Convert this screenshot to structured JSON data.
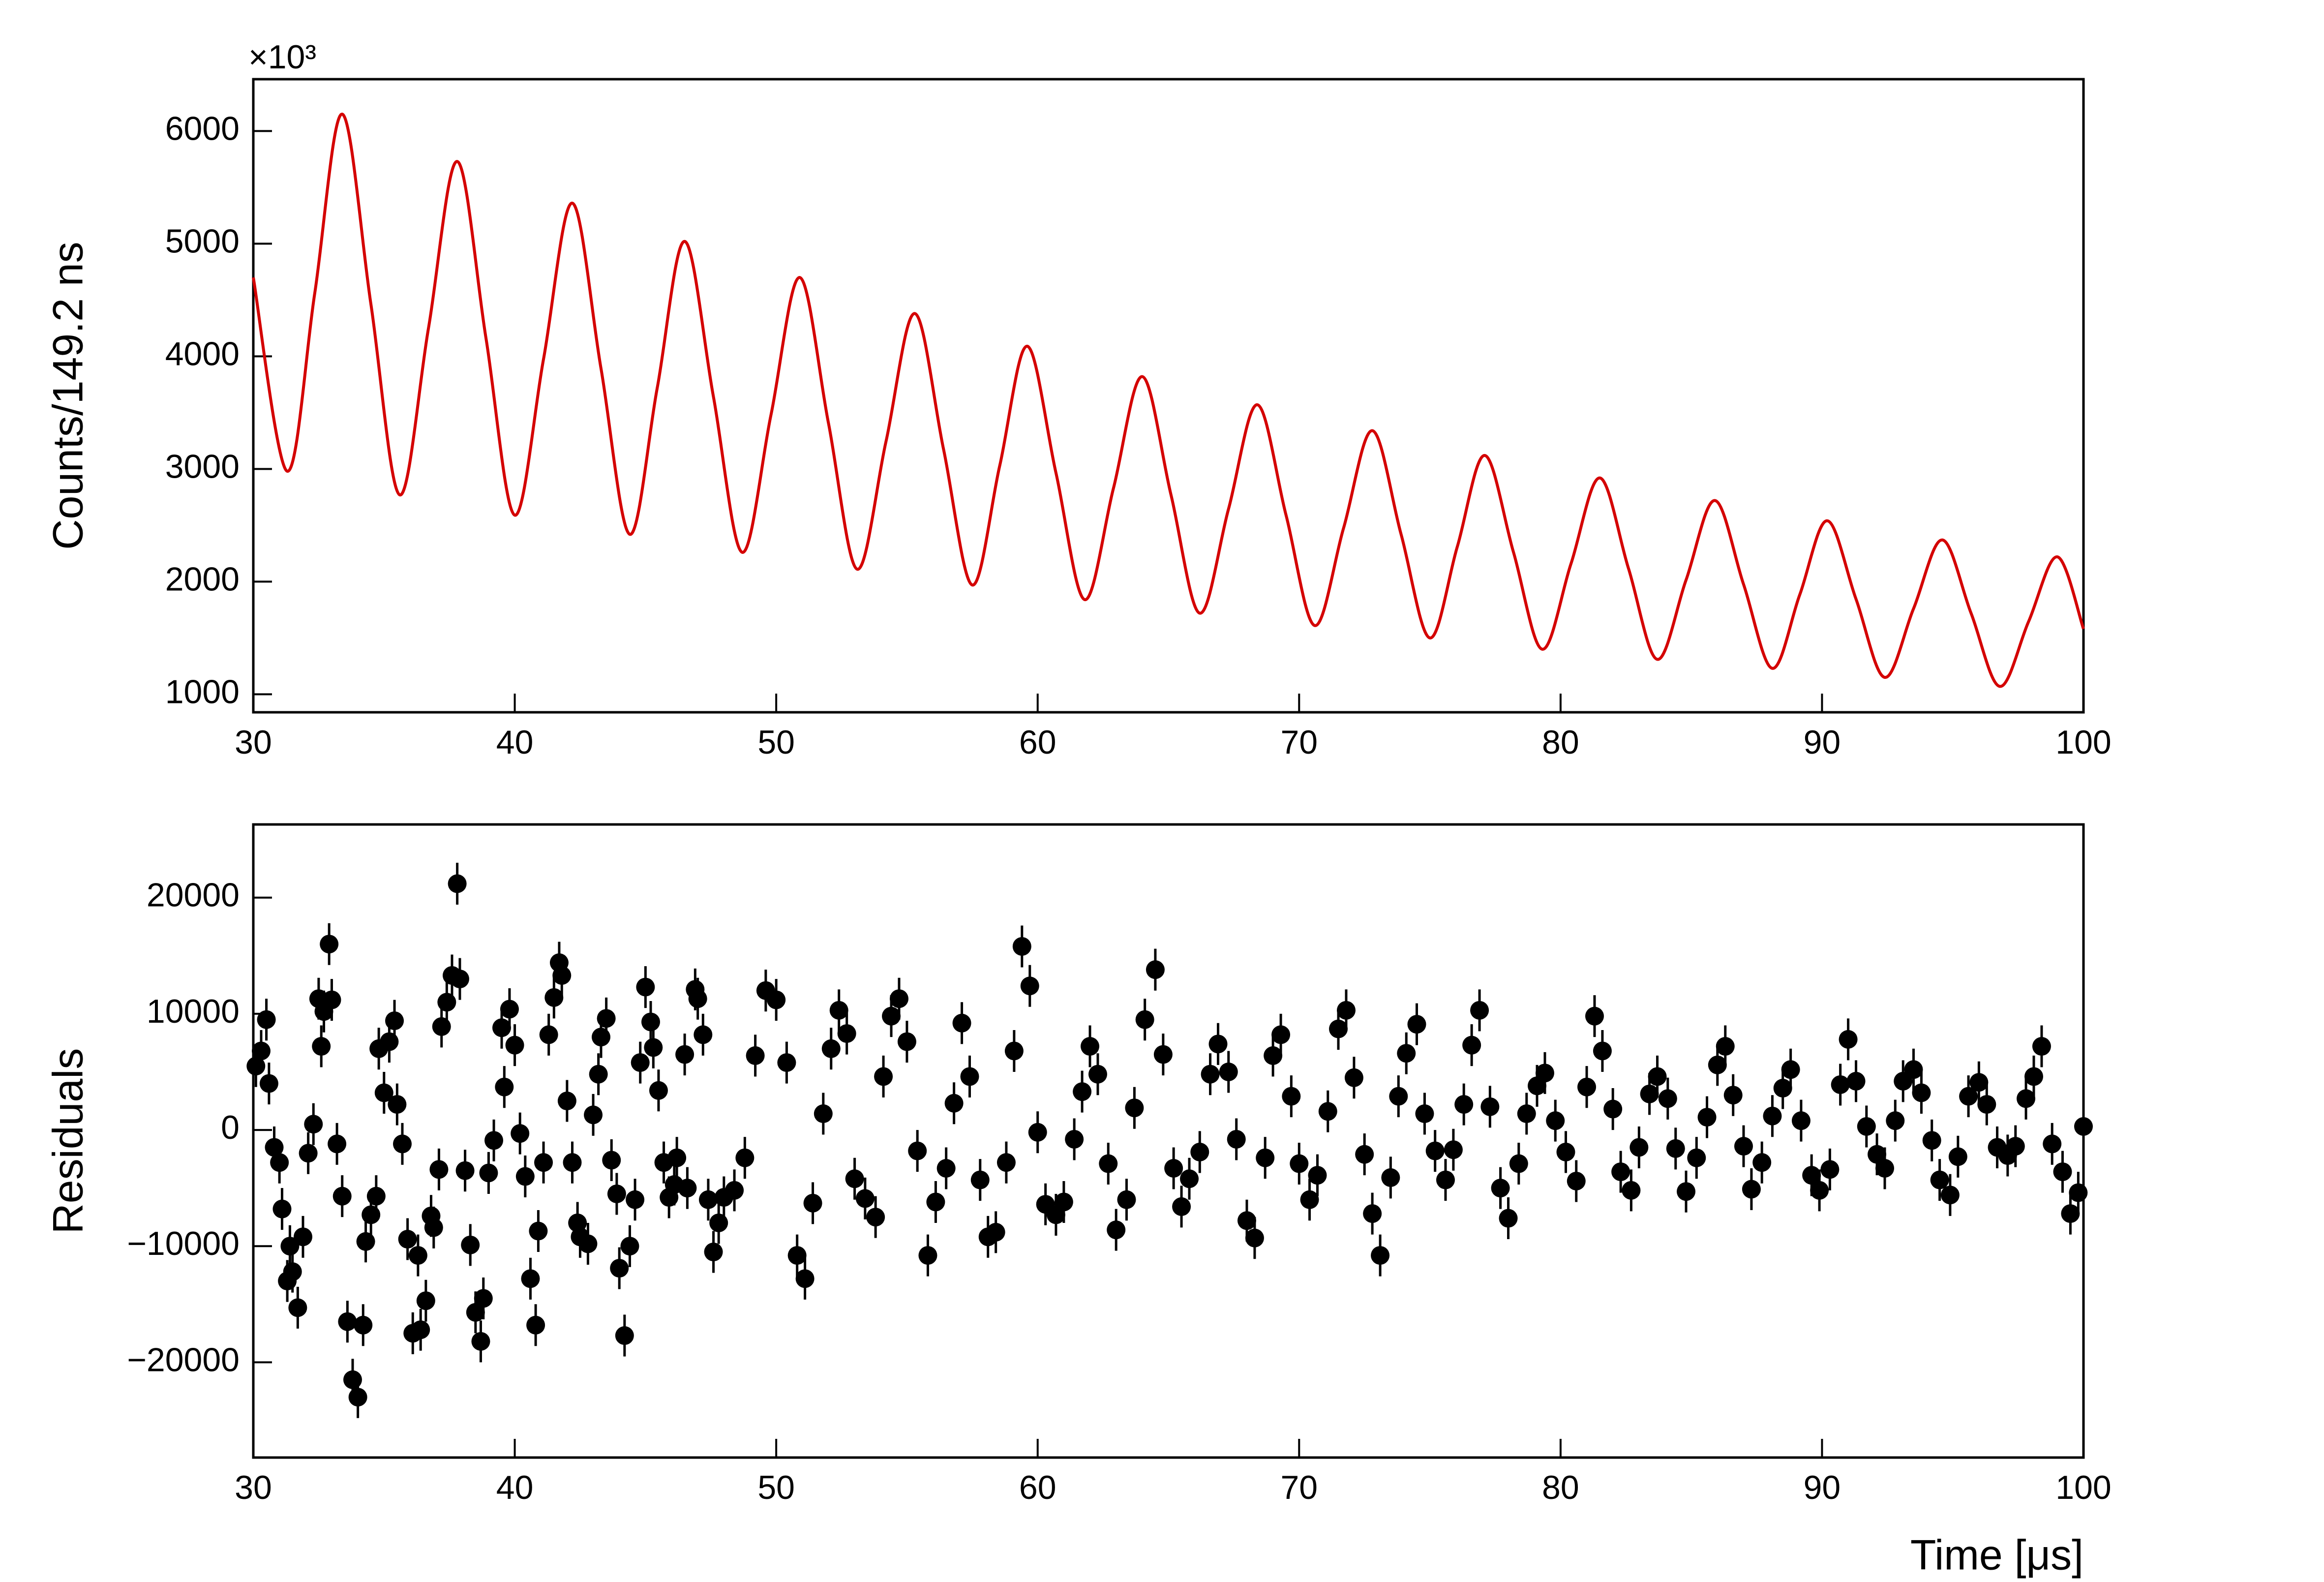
{
  "chart_data": [
    {
      "type": "line",
      "y_label": "Counts/149.2 ns",
      "y_multiplier": "×10³",
      "x": [
        30.0,
        31.3,
        32.35,
        33.4,
        34.5,
        35.6,
        36.7,
        37.8,
        38.9,
        40.0,
        41.1,
        42.2,
        43.3,
        44.4,
        45.45,
        46.5,
        47.6,
        48.7,
        49.8,
        50.9,
        52.0,
        53.1,
        54.2,
        55.3,
        56.4,
        57.5,
        58.55,
        59.6,
        60.7,
        61.8,
        62.9,
        64.0,
        65.1,
        66.2,
        67.3,
        68.4,
        69.5,
        70.6,
        71.7,
        72.8,
        73.9,
        75.0,
        76.05,
        77.1,
        78.2,
        79.3,
        80.4,
        81.5,
        82.6,
        83.7,
        84.8,
        85.9,
        87.0,
        88.1,
        89.15,
        90.2,
        91.3,
        92.4,
        93.5,
        94.6,
        95.7,
        96.8,
        97.9,
        99.0,
        100.0
      ],
      "series": [
        {
          "color": "#d40000",
          "values": [
            4700,
            2980,
            4560,
            6150,
            4460,
            2770,
            4250,
            5730,
            4160,
            2590,
            3975,
            5360,
            3890,
            2420,
            3720,
            5020,
            3640,
            2260,
            3480,
            4700,
            3405,
            2110,
            3245,
            4380,
            3175,
            1970,
            3030,
            4090,
            2965,
            1840,
            2830,
            3820,
            2770,
            1720,
            2645,
            3570,
            2590,
            1610,
            2475,
            3340,
            2420,
            1500,
            2310,
            3120,
            2260,
            1400,
            2160,
            2920,
            2115,
            1310,
            2015,
            2720,
            1975,
            1230,
            1885,
            2540,
            1845,
            1150,
            1760,
            2370,
            1720,
            1070,
            1645,
            2220,
            1580
          ]
        }
      ],
      "xlim": [
        30,
        100
      ],
      "xticks": [
        30,
        40,
        50,
        60,
        70,
        80,
        90,
        100
      ],
      "ylim": [
        840,
        6460
      ],
      "yticks": [
        1000,
        2000,
        3000,
        4000,
        5000,
        6000
      ]
    },
    {
      "type": "scatter",
      "x_label": "Time [μs]",
      "y_label": "Residuals",
      "yerr": 1800,
      "x": [
        30.1,
        30.3,
        30.5,
        30.6,
        30.8,
        31.0,
        31.1,
        31.3,
        31.4,
        31.5,
        31.7,
        31.9,
        32.1,
        32.3,
        32.5,
        32.6,
        32.7,
        32.9,
        33.0,
        33.2,
        33.4,
        33.6,
        33.8,
        34.0,
        34.2,
        34.3,
        34.5,
        34.7,
        34.8,
        35.0,
        35.2,
        35.4,
        35.5,
        35.7,
        35.9,
        36.1,
        36.3,
        36.4,
        36.6,
        36.8,
        36.9,
        37.1,
        37.2,
        37.4,
        37.6,
        37.8,
        37.9,
        38.1,
        38.3,
        38.5,
        38.7,
        38.8,
        39.0,
        39.2,
        39.5,
        39.6,
        39.8,
        40.0,
        40.2,
        40.4,
        40.6,
        40.8,
        40.9,
        41.1,
        41.3,
        41.5,
        41.7,
        41.8,
        42.0,
        42.2,
        42.4,
        42.5,
        42.8,
        43.0,
        43.2,
        43.3,
        43.5,
        43.7,
        43.9,
        44.0,
        44.2,
        44.4,
        44.6,
        44.8,
        45.0,
        45.2,
        45.3,
        45.5,
        45.7,
        45.9,
        46.1,
        46.2,
        46.5,
        46.6,
        46.9,
        47.0,
        47.2,
        47.4,
        47.6,
        47.8,
        48.0,
        48.4,
        48.8,
        49.2,
        49.6,
        50.0,
        50.4,
        50.8,
        51.1,
        51.4,
        51.8,
        52.1,
        52.4,
        52.7,
        53.0,
        53.4,
        53.8,
        54.1,
        54.4,
        54.7,
        55.0,
        55.4,
        55.8,
        56.1,
        56.5,
        56.8,
        57.1,
        57.4,
        57.8,
        58.1,
        58.4,
        58.8,
        59.1,
        59.4,
        59.7,
        60.0,
        60.3,
        60.7,
        61.0,
        61.4,
        61.7,
        62.0,
        62.3,
        62.7,
        63.0,
        63.4,
        63.7,
        64.1,
        64.5,
        64.8,
        65.2,
        65.5,
        65.8,
        66.2,
        66.6,
        66.9,
        67.3,
        67.6,
        68.0,
        68.3,
        68.7,
        69.0,
        69.3,
        69.7,
        70.0,
        70.4,
        70.7,
        71.1,
        71.5,
        71.8,
        72.1,
        72.5,
        72.8,
        73.1,
        73.5,
        73.8,
        74.1,
        74.5,
        74.8,
        75.2,
        75.6,
        75.9,
        76.3,
        76.6,
        76.9,
        77.3,
        77.7,
        78.0,
        78.4,
        78.7,
        79.1,
        79.4,
        79.8,
        80.2,
        80.6,
        81.0,
        81.3,
        81.6,
        82.0,
        82.3,
        82.7,
        83.0,
        83.4,
        83.7,
        84.1,
        84.4,
        84.8,
        85.2,
        85.6,
        86.0,
        86.3,
        86.6,
        87.0,
        87.3,
        87.7,
        88.1,
        88.5,
        88.8,
        89.2,
        89.6,
        89.9,
        90.3,
        90.7,
        91.0,
        91.3,
        91.7,
        92.1,
        92.4,
        92.8,
        93.1,
        93.5,
        93.8,
        94.2,
        94.5,
        94.9,
        95.2,
        95.6,
        96.0,
        96.3,
        96.7,
        97.1,
        97.4,
        97.8,
        98.1,
        98.4,
        98.8,
        99.2,
        99.5,
        99.8,
        100.0
      ],
      "series": [
        {
          "color": "#000000",
          "values": [
            5500,
            6800,
            9500,
            4000,
            -1500,
            -2800,
            -6800,
            -13000,
            -10000,
            -12200,
            -15300,
            -9200,
            -2000,
            500,
            11300,
            7200,
            10200,
            16000,
            11200,
            -1200,
            -5700,
            -16500,
            -21500,
            -23000,
            -16800,
            -9600,
            -7300,
            -5700,
            7000,
            3200,
            7600,
            9400,
            2200,
            -1200,
            -9400,
            -17500,
            -10800,
            -17200,
            -14700,
            -7400,
            -8400,
            -3400,
            8900,
            11000,
            13300,
            21200,
            13000,
            -3500,
            -9900,
            -15700,
            -18200,
            -14500,
            -3700,
            -900,
            8800,
            3700,
            10400,
            7300,
            -300,
            -4000,
            -12800,
            -16800,
            -8700,
            -2800,
            8200,
            11400,
            14400,
            13300,
            2500,
            -2800,
            -8000,
            -9200,
            -9800,
            1300,
            4800,
            8000,
            9600,
            -2600,
            -5500,
            -11900,
            -17700,
            -10000,
            -6000,
            5800,
            12300,
            9300,
            7100,
            3400,
            -2800,
            -5800,
            -4700,
            -2400,
            6500,
            -5000,
            12100,
            11300,
            8200,
            -6000,
            -10500,
            -8000,
            -5800,
            -5200,
            -2400,
            6400,
            12000,
            11200,
            5800,
            -10800,
            -12800,
            -6300,
            1400,
            7000,
            10300,
            8300,
            -4200,
            -5900,
            -7500,
            4600,
            9800,
            11300,
            7600,
            -1800,
            -10800,
            -6200,
            -3300,
            2300,
            9200,
            4600,
            -4300,
            -9200,
            -8800,
            -2800,
            6800,
            15800,
            12400,
            -200,
            -6400,
            -7300,
            -6200,
            -800,
            3300,
            7200,
            4800,
            -2900,
            -8600,
            -6000,
            1900,
            9500,
            13800,
            6500,
            -3300,
            -6600,
            -4200,
            -1900,
            4800,
            7400,
            5000,
            -800,
            -7800,
            -9300,
            -2400,
            6400,
            8200,
            2900,
            -2900,
            -6000,
            -3900,
            1600,
            8700,
            10300,
            4500,
            -2100,
            -7200,
            -10800,
            -4100,
            2900,
            6600,
            9100,
            1400,
            -1800,
            -4300,
            -1700,
            2200,
            7300,
            10300,
            2000,
            -5000,
            -7600,
            -2900,
            1400,
            3800,
            4900,
            800,
            -1900,
            -4400,
            3700,
            9800,
            6800,
            1800,
            -3600,
            -5200,
            -1500,
            3100,
            4600,
            2700,
            -1600,
            -5300,
            -2400,
            1100,
            5600,
            7200,
            3000,
            -1400,
            -5100,
            -2800,
            1200,
            3600,
            5200,
            800,
            -3900,
            -5200,
            -3400,
            3900,
            7800,
            4200,
            300,
            -2100,
            -3300,
            800,
            4200,
            5200,
            3200,
            -900,
            -4300,
            -5600,
            -2300,
            2900,
            4100,
            2200,
            -1500,
            -2200,
            -1400,
            2700,
            4600,
            7200,
            -1200,
            -3600,
            -7200,
            -5400,
            300
          ]
        }
      ],
      "xlim": [
        30,
        100
      ],
      "xticks": [
        30,
        40,
        50,
        60,
        70,
        80,
        90,
        100
      ],
      "ylim": [
        -28200,
        26300
      ],
      "yticks": [
        {
          "value": -20000,
          "label": "−20000"
        },
        {
          "value": -10000,
          "label": "−10000"
        },
        0,
        10000,
        20000
      ]
    }
  ]
}
